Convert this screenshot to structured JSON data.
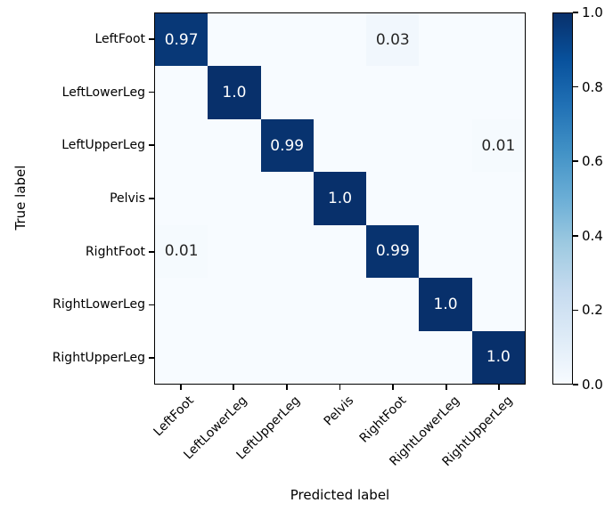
{
  "chart_data": {
    "type": "heatmap",
    "title": "",
    "xlabel": "Predicted label",
    "ylabel": "True label",
    "categories": [
      "LeftFoot",
      "LeftLowerLeg",
      "LeftUpperLeg",
      "Pelvis",
      "RightFoot",
      "RightLowerLeg",
      "RightUpperLeg"
    ],
    "matrix": [
      [
        0.97,
        0,
        0,
        0,
        0.03,
        0,
        0
      ],
      [
        0,
        1.0,
        0,
        0,
        0,
        0,
        0
      ],
      [
        0,
        0,
        0.99,
        0,
        0,
        0,
        0.01
      ],
      [
        0,
        0,
        0,
        1.0,
        0,
        0,
        0
      ],
      [
        0.01,
        0,
        0,
        0,
        0.99,
        0,
        0
      ],
      [
        0,
        0,
        0,
        0,
        0,
        1.0,
        0
      ],
      [
        0,
        0,
        0,
        0,
        0,
        0,
        1.0
      ]
    ],
    "cell_labels": [
      [
        "0.97",
        "",
        "",
        "",
        "0.03",
        "",
        ""
      ],
      [
        "",
        "1.0",
        "",
        "",
        "",
        "",
        ""
      ],
      [
        "",
        "",
        "0.99",
        "",
        "",
        "",
        "0.01"
      ],
      [
        "",
        "",
        "",
        "1.0",
        "",
        "",
        ""
      ],
      [
        "0.01",
        "",
        "",
        "",
        "0.99",
        "",
        ""
      ],
      [
        "",
        "",
        "",
        "",
        "",
        "1.0",
        ""
      ],
      [
        "",
        "",
        "",
        "",
        "",
        "",
        "1.0"
      ]
    ],
    "value_range": [
      0.0,
      1.0
    ],
    "colormap": "Blues",
    "colorbar_ticks": [
      "1.0",
      "0.8",
      "0.6",
      "0.4",
      "0.2",
      "0.0"
    ],
    "legend_position": "colorbar-right",
    "grid": false,
    "colors": {
      "cmap_low": "#f7fbff",
      "cmap_high": "#08306b",
      "text_on_dark": "#ffffff",
      "text_on_light": "#262626",
      "axis": "#000000",
      "background": "#ffffff"
    }
  }
}
